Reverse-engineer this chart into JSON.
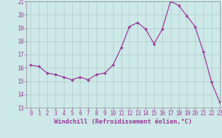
{
  "x": [
    0,
    1,
    2,
    3,
    4,
    5,
    6,
    7,
    8,
    9,
    10,
    11,
    12,
    13,
    14,
    15,
    16,
    17,
    18,
    19,
    20,
    21,
    22,
    23
  ],
  "y": [
    16.2,
    16.1,
    15.6,
    15.5,
    15.3,
    15.1,
    15.3,
    15.1,
    15.5,
    15.6,
    16.2,
    17.5,
    19.1,
    19.4,
    18.9,
    17.8,
    18.9,
    21.0,
    20.7,
    19.9,
    19.1,
    17.2,
    14.9,
    13.4
  ],
  "line_color": "#993399",
  "marker": "D",
  "marker_size": 2,
  "linewidth": 0.9,
  "bg_color": "#cce8e8",
  "grid_color": "#b0c8c8",
  "xlabel": "Windchill (Refroidissement éolien,°C)",
  "xlabel_color": "#993399",
  "tick_color": "#993399",
  "ylim": [
    13,
    21
  ],
  "xlim": [
    -0.5,
    23
  ],
  "yticks": [
    13,
    14,
    15,
    16,
    17,
    18,
    19,
    20,
    21
  ],
  "xticks": [
    0,
    1,
    2,
    3,
    4,
    5,
    6,
    7,
    8,
    9,
    10,
    11,
    12,
    13,
    14,
    15,
    16,
    17,
    18,
    19,
    20,
    21,
    22,
    23
  ],
  "tick_fontsize": 5.5,
  "xlabel_fontsize": 6.5
}
